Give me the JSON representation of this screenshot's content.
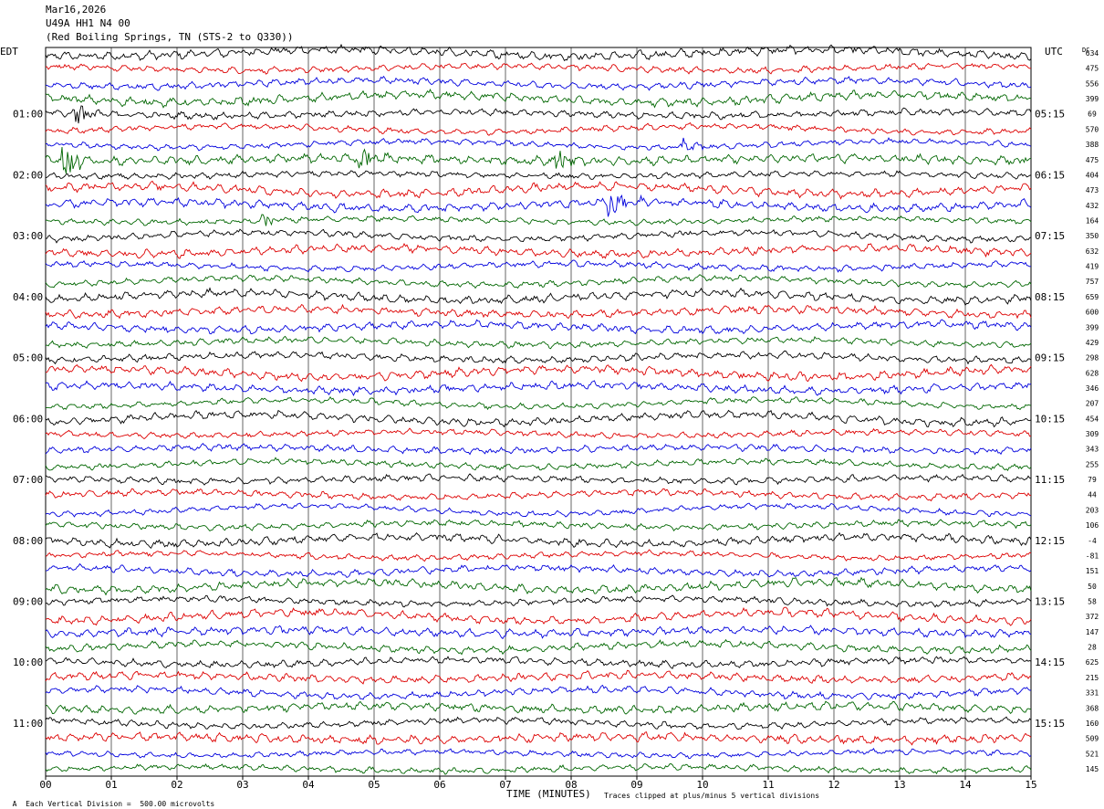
{
  "header": {
    "date": "Mar16,2026",
    "station": "U49A HH1 N4 00",
    "location": "(Red Boiling Springs, TN (STS-2 to Q330))"
  },
  "footer": {
    "scale_note": "Each Vertical Division =  500.00 microvolts",
    "scale_mark": "A",
    "xlabel": "TIME (MINUTES)",
    "clip_note": "Traces clipped at plus/minus 5 vertical divisions"
  },
  "chart_data": {
    "type": "line",
    "left_axis_label": "EDT",
    "right_axis_label": "UTC",
    "dc_label": "DC",
    "x_ticks": [
      "00",
      "01",
      "02",
      "03",
      "04",
      "05",
      "06",
      "07",
      "08",
      "09",
      "10",
      "11",
      "12",
      "13",
      "14",
      "15"
    ],
    "xlim": [
      0,
      15
    ],
    "left_hour_labels": [
      "01:00",
      "02:00",
      "03:00",
      "04:00",
      "05:00",
      "06:00",
      "07:00",
      "08:00",
      "09:00",
      "10:00",
      "11:00"
    ],
    "right_hour_labels": [
      "05:15",
      "06:15",
      "07:15",
      "08:15",
      "09:15",
      "10:15",
      "11:15",
      "12:15",
      "13:15",
      "14:15",
      "15:15"
    ],
    "trace_colors": [
      "#000000",
      "#dd0000",
      "#0000dd",
      "#006600"
    ],
    "dc_offsets": [
      "634",
      "475",
      "556",
      "399",
      "69",
      "570",
      "388",
      "475",
      "404",
      "473",
      "432",
      "164",
      "350",
      "632",
      "419",
      "757",
      "659",
      "600",
      "399",
      "429",
      "298",
      "628",
      "346",
      "207",
      "454",
      "309",
      "343",
      "255",
      "79",
      "44",
      "203",
      "106",
      "-4",
      "-81",
      "151",
      "50",
      "58",
      "372",
      "147",
      "28",
      "625",
      "215",
      "331",
      "368",
      "160",
      "509",
      "521",
      "145"
    ],
    "events": [
      {
        "trace": 4,
        "minute": 0.5,
        "amp": 3
      },
      {
        "trace": 7,
        "minute": 0.3,
        "amp": 5
      },
      {
        "trace": 7,
        "minute": 4.8,
        "amp": 3
      },
      {
        "trace": 7,
        "minute": 7.8,
        "amp": 3
      },
      {
        "trace": 6,
        "minute": 9.7,
        "amp": 2
      },
      {
        "trace": 10,
        "minute": 8.6,
        "amp": 4
      },
      {
        "trace": 11,
        "minute": 3.3,
        "amp": 1.5
      }
    ]
  }
}
